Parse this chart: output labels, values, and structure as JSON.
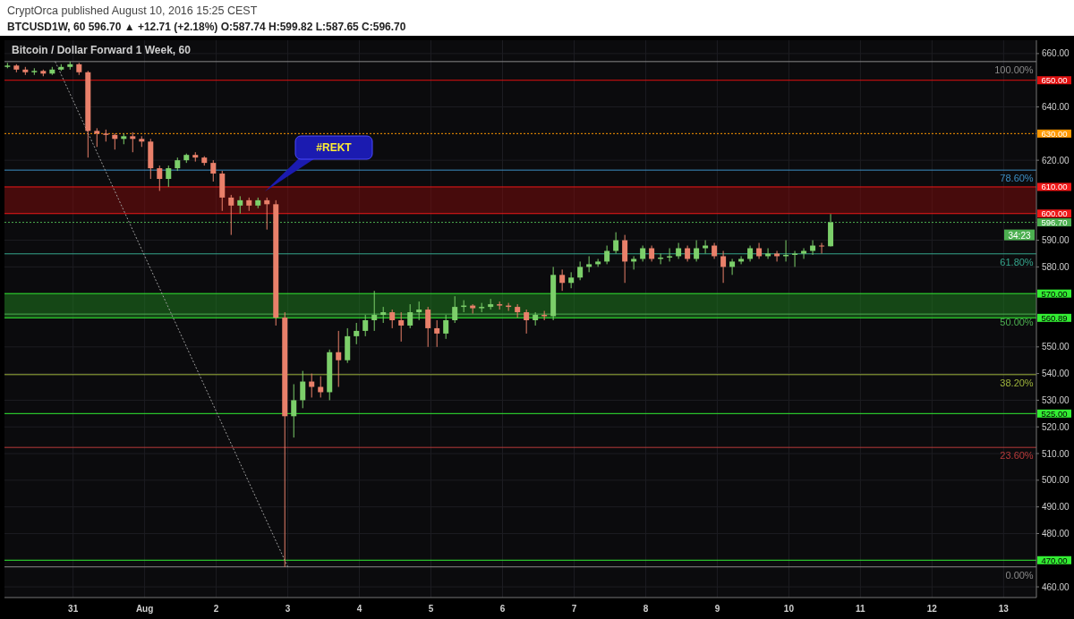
{
  "chart_data": {
    "type": "candlestick",
    "title": "Bitcoin / Dollar Forward 1 Week, 60",
    "subtitle": "BTCUSD1W, 60 596.70 ▲ +12.71 (+2.18%) O:587.74 H:599.82 L:587.65 C:596.70",
    "annotations": [
      "CryptOrca published August 10, 2016 15:25 CEST",
      "34:23",
      "#REKT",
      {
        "text": "100.00%",
        "x": "2016-08-13T10:00",
        "y": 657
      },
      {
        "text": "78.60%",
        "x": "2016-08-13T10:00",
        "y": 616.3
      },
      {
        "text": "61.80%",
        "x": "2016-08-13T10:00",
        "y": 584.9
      },
      {
        "text": "50.00%",
        "x": "2016-08-13T10:00",
        "y": 562.3
      },
      {
        "text": "38.20%",
        "x": "2016-08-13T10:00",
        "y": 539.6
      },
      {
        "text": "23.60%",
        "x": "2016-08-13T10:00",
        "y": 512.3
      },
      {
        "text": "0.00%",
        "x": "2016-08-13T10:00",
        "y": 467.5
      }
    ],
    "x": [
      "2016-07-30T02:00",
      "2016-07-30T05:00",
      "2016-07-30T08:00",
      "2016-07-30T11:00",
      "2016-07-30T14:00",
      "2016-07-30T17:00",
      "2016-07-30T20:00",
      "2016-07-30T23:00",
      "2016-07-31T02:00",
      "2016-07-31T05:00",
      "2016-07-31T08:00",
      "2016-07-31T11:00",
      "2016-07-31T14:00",
      "2016-07-31T17:00",
      "2016-07-31T20:00",
      "2016-07-31T23:00",
      "2016-08-01T02:00",
      "2016-08-01T05:00",
      "2016-08-01T08:00",
      "2016-08-01T11:00",
      "2016-08-01T14:00",
      "2016-08-01T17:00",
      "2016-08-01T20:00",
      "2016-08-01T23:00",
      "2016-08-02T02:00",
      "2016-08-02T05:00",
      "2016-08-02T08:00",
      "2016-08-02T11:00",
      "2016-08-02T14:00",
      "2016-08-02T17:00",
      "2016-08-02T20:00",
      "2016-08-02T23:00",
      "2016-08-03T02:00",
      "2016-08-03T05:00",
      "2016-08-03T08:00",
      "2016-08-03T11:00",
      "2016-08-03T14:00",
      "2016-08-03T17:00",
      "2016-08-03T20:00",
      "2016-08-03T23:00",
      "2016-08-04T02:00",
      "2016-08-04T05:00",
      "2016-08-04T08:00",
      "2016-08-04T11:00",
      "2016-08-04T14:00",
      "2016-08-04T17:00",
      "2016-08-04T20:00",
      "2016-08-04T23:00",
      "2016-08-05T02:00",
      "2016-08-05T05:00",
      "2016-08-05T08:00",
      "2016-08-05T11:00",
      "2016-08-05T14:00",
      "2016-08-05T17:00",
      "2016-08-05T20:00",
      "2016-08-05T23:00",
      "2016-08-06T02:00",
      "2016-08-06T05:00",
      "2016-08-06T08:00",
      "2016-08-06T11:00",
      "2016-08-06T14:00",
      "2016-08-06T17:00",
      "2016-08-06T20:00",
      "2016-08-06T23:00",
      "2016-08-07T02:00",
      "2016-08-07T05:00",
      "2016-08-07T08:00",
      "2016-08-07T11:00",
      "2016-08-07T14:00",
      "2016-08-07T17:00",
      "2016-08-07T20:00",
      "2016-08-07T23:00",
      "2016-08-08T02:00",
      "2016-08-08T05:00",
      "2016-08-08T08:00",
      "2016-08-08T11:00",
      "2016-08-08T14:00",
      "2016-08-08T17:00",
      "2016-08-08T20:00",
      "2016-08-08T23:00",
      "2016-08-09T02:00",
      "2016-08-09T05:00",
      "2016-08-09T08:00",
      "2016-08-09T11:00",
      "2016-08-09T14:00",
      "2016-08-09T17:00",
      "2016-08-09T20:00",
      "2016-08-09T23:00",
      "2016-08-10T02:00",
      "2016-08-10T05:00",
      "2016-08-10T08:00",
      "2016-08-10T11:00",
      "2016-08-10T14:00"
    ],
    "ohlc": [
      [
        655,
        656.5,
        654.5,
        655.5
      ],
      [
        655.5,
        656,
        653,
        654
      ],
      [
        654,
        655,
        652,
        653
      ],
      [
        653,
        654.5,
        652,
        653.5
      ],
      [
        653.5,
        654,
        651.5,
        652.5
      ],
      [
        652.5,
        655,
        652,
        654
      ],
      [
        654,
        656,
        653.5,
        655
      ],
      [
        655,
        657,
        654,
        656
      ],
      [
        656,
        656.5,
        652,
        653
      ],
      [
        653,
        653.5,
        621,
        631
      ],
      [
        631,
        632,
        625,
        630
      ],
      [
        630,
        631.5,
        627,
        629.5
      ],
      [
        629.5,
        630,
        624,
        628
      ],
      [
        628,
        630,
        626,
        629
      ],
      [
        629,
        630.5,
        623,
        628
      ],
      [
        628,
        629,
        625,
        627
      ],
      [
        627,
        628,
        613,
        617
      ],
      [
        617,
        618,
        608.5,
        613
      ],
      [
        613,
        618,
        610,
        617
      ],
      [
        617,
        621,
        616,
        620
      ],
      [
        620,
        622.5,
        619,
        622
      ],
      [
        622,
        623,
        619.5,
        621
      ],
      [
        621,
        621.5,
        618,
        619
      ],
      [
        619,
        620,
        612,
        615
      ],
      [
        615,
        616,
        601,
        606
      ],
      [
        606,
        607,
        592,
        603
      ],
      [
        603,
        606.5,
        600,
        605
      ],
      [
        605,
        606,
        601,
        603
      ],
      [
        603,
        606,
        602,
        605
      ],
      [
        605,
        606,
        594,
        603.5
      ],
      [
        603.5,
        605,
        558,
        561
      ],
      [
        561,
        563,
        467.5,
        524
      ],
      [
        524,
        536,
        516,
        530
      ],
      [
        530,
        541,
        527,
        537
      ],
      [
        537,
        540,
        531,
        535
      ],
      [
        535,
        539,
        531,
        533
      ],
      [
        533,
        549,
        530,
        548
      ],
      [
        548,
        556,
        535,
        545
      ],
      [
        545,
        557,
        544,
        554
      ],
      [
        554,
        559,
        551,
        556
      ],
      [
        556,
        562,
        554,
        560
      ],
      [
        560,
        571,
        556,
        562
      ],
      [
        562,
        565,
        559,
        563
      ],
      [
        563,
        564,
        557,
        560
      ],
      [
        560,
        563,
        552,
        558
      ],
      [
        558,
        566,
        557,
        563
      ],
      [
        563,
        567,
        560,
        564
      ],
      [
        564,
        565,
        550,
        557
      ],
      [
        557,
        560,
        550,
        555
      ],
      [
        555,
        562,
        553,
        560
      ],
      [
        560,
        569,
        559,
        565
      ],
      [
        565,
        567.5,
        563,
        565.5
      ],
      [
        565.5,
        566,
        562.5,
        564.5
      ],
      [
        564.5,
        566.5,
        563,
        565
      ],
      [
        565,
        568,
        564,
        566
      ],
      [
        566,
        567,
        564,
        565.5
      ],
      [
        565.5,
        566.5,
        563.5,
        565
      ],
      [
        565,
        566,
        561,
        563
      ],
      [
        563,
        564,
        555,
        560
      ],
      [
        560,
        563,
        558,
        562
      ],
      [
        562,
        563.5,
        560,
        561.5
      ],
      [
        561.5,
        580,
        560,
        577
      ],
      [
        577,
        579,
        571,
        574
      ],
      [
        574,
        578,
        572,
        576
      ],
      [
        576,
        582,
        575,
        580
      ],
      [
        580,
        584,
        578,
        581
      ],
      [
        581,
        583,
        580,
        582
      ],
      [
        582,
        588,
        581,
        586
      ],
      [
        586,
        593,
        585,
        590
      ],
      [
        590,
        592,
        574,
        582
      ],
      [
        582,
        584,
        579,
        583
      ],
      [
        583,
        588,
        582,
        587
      ],
      [
        587,
        588,
        582,
        583
      ],
      [
        583,
        585,
        581,
        583.5
      ],
      [
        583.5,
        587,
        582,
        584
      ],
      [
        584,
        589,
        583,
        587
      ],
      [
        587,
        588,
        582,
        583
      ],
      [
        583,
        590,
        582,
        587
      ],
      [
        587,
        590,
        585,
        588
      ],
      [
        588,
        589,
        583,
        584
      ],
      [
        584,
        586,
        574,
        580
      ],
      [
        580,
        583,
        577,
        582
      ],
      [
        582,
        584,
        581,
        583
      ],
      [
        583,
        588,
        582,
        587
      ],
      [
        587,
        589,
        583,
        584
      ],
      [
        584,
        587,
        583,
        585
      ],
      [
        585,
        586,
        582,
        584
      ],
      [
        584,
        590,
        582,
        584.5
      ],
      [
        584.5,
        586,
        580,
        585
      ],
      [
        585,
        587,
        583,
        586
      ],
      [
        586,
        590,
        584.5,
        588
      ],
      [
        588,
        589,
        585,
        587.74
      ],
      [
        587.74,
        599.82,
        587.65,
        596.7
      ]
    ],
    "series": [
      {
        "type": "line",
        "x": [
          "2016-07-30T18:00",
          "2016-08-03T00:00"
        ],
        "values": [
          657,
          467.5
        ],
        "color": "#9e9e9e",
        "line_style": "dotted"
      }
    ],
    "xlim": [
      "2016-07-30T01:00",
      "2016-08-13T11:00"
    ],
    "xticks": [
      {
        "value": "2016-07-31",
        "label": "31"
      },
      {
        "value": "2016-08-01",
        "label": "Aug"
      },
      {
        "value": "2016-08-02",
        "label": "2"
      },
      {
        "value": "2016-08-03",
        "label": "3"
      },
      {
        "value": "2016-08-04",
        "label": "4"
      },
      {
        "value": "2016-08-05",
        "label": "5"
      },
      {
        "value": "2016-08-06",
        "label": "6"
      },
      {
        "value": "2016-08-07",
        "label": "7"
      },
      {
        "value": "2016-08-08",
        "label": "8"
      },
      {
        "value": "2016-08-09",
        "label": "9"
      },
      {
        "value": "2016-08-10",
        "label": "10"
      },
      {
        "value": "2016-08-11",
        "label": "11"
      },
      {
        "value": "2016-08-12",
        "label": "12"
      },
      {
        "value": "2016-08-13",
        "label": "13"
      }
    ],
    "ylim": [
      456,
      665
    ],
    "yticks": [
      {
        "value": 460,
        "label": "460.00"
      },
      {
        "value": 480,
        "label": "480.00"
      },
      {
        "value": 490,
        "label": "490.00"
      },
      {
        "value": 500,
        "label": "500.00"
      },
      {
        "value": 510,
        "label": "510.00"
      },
      {
        "value": 520,
        "label": "520.00"
      },
      {
        "value": 530,
        "label": "530.00"
      },
      {
        "value": 540,
        "label": "540.00"
      },
      {
        "value": 550,
        "label": "550.00"
      },
      {
        "value": 580,
        "label": "580.00"
      },
      {
        "value": 590,
        "label": "590.00"
      },
      {
        "value": 620,
        "label": "620.00"
      },
      {
        "value": 640,
        "label": "640.00"
      },
      {
        "value": 660,
        "label": "660.00"
      }
    ],
    "ref_lines": [
      {
        "axis": "y",
        "value": 650,
        "label": "650.00",
        "color": "#e01010"
      },
      {
        "axis": "y",
        "value": 630,
        "label": "630.00",
        "color": "#ff9800",
        "line_style": "dotted"
      },
      {
        "axis": "y",
        "value": 610,
        "label": "610.00",
        "color": "#f01818"
      },
      {
        "axis": "y",
        "value": 600,
        "label": "600.00",
        "color": "#f01818"
      },
      {
        "axis": "y",
        "value": 596.7,
        "label": "596.70",
        "color": "#4caf50",
        "line_style": "dotted"
      },
      {
        "axis": "y",
        "value": 570,
        "label": "570.00",
        "color": "#33ee33"
      },
      {
        "axis": "y",
        "value": 560.89,
        "label": "560.89",
        "color": "#33ee33"
      },
      {
        "axis": "y",
        "value": 525,
        "label": "525.00",
        "color": "#33ee33"
      },
      {
        "axis": "y",
        "value": 470,
        "label": "470.00",
        "color": "#33ee33"
      },
      {
        "axis": "y",
        "value": 657,
        "color": "#8a8a8a"
      },
      {
        "axis": "y",
        "value": 616.3,
        "color": "#3d8fc4"
      },
      {
        "axis": "y",
        "value": 584.9,
        "color": "#35a58c"
      },
      {
        "axis": "y",
        "value": 562.3,
        "color": "#4caf50"
      },
      {
        "axis": "y",
        "value": 539.6,
        "color": "#9db23b"
      },
      {
        "axis": "y",
        "value": 512.3,
        "color": "#b83a3a"
      },
      {
        "axis": "y",
        "value": 467.5,
        "color": "#8a8a8a"
      }
    ],
    "bands": [
      {
        "axis": "y",
        "from": 600,
        "to": 610,
        "color": "#7a0d0d"
      },
      {
        "axis": "y",
        "from": 560.89,
        "to": 570,
        "color": "#1f7a1f"
      }
    ],
    "grid": true
  }
}
